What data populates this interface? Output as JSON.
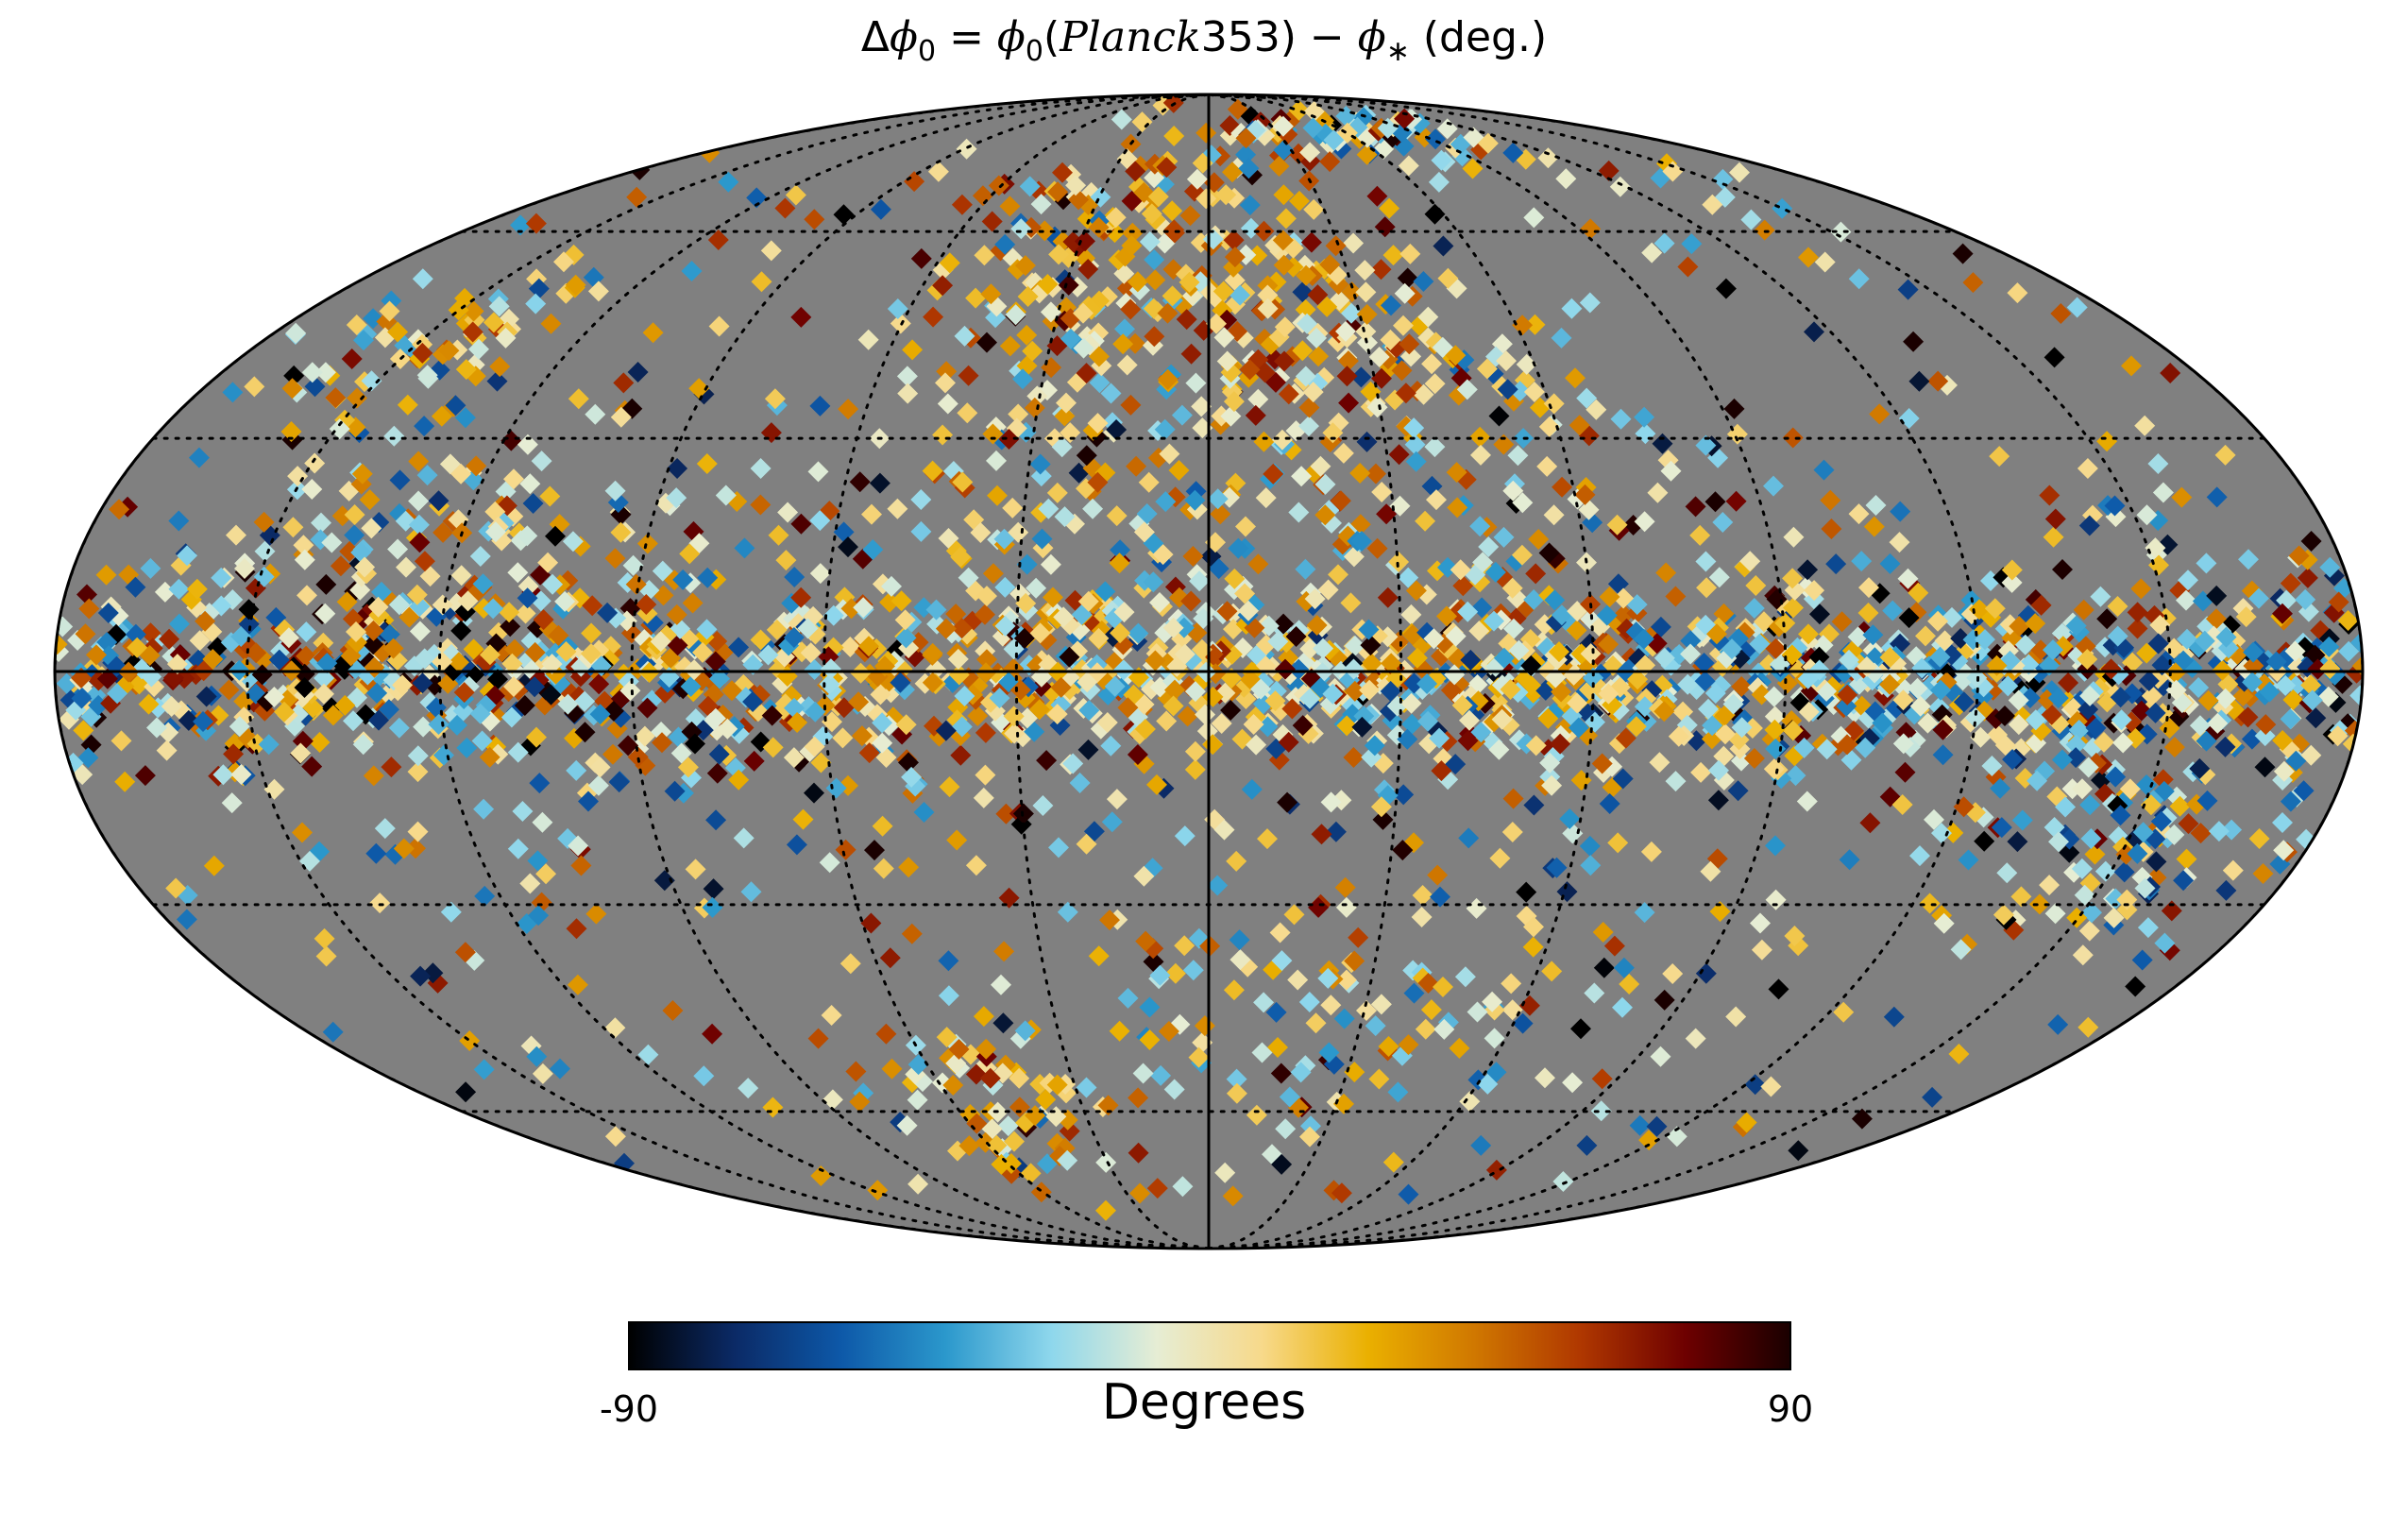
{
  "chart_data": {
    "type": "heatmap",
    "projection": "mollweide",
    "title": {
      "lhs": "Δ",
      "phi": "ϕ",
      "sub0": "0",
      "open": "(",
      "planck": "Planck",
      "band": "353",
      "close": ")",
      "minus": " − ",
      "phistar": "ϕ",
      "star": "∗",
      "units": " (deg.)"
    },
    "colorbar": {
      "label": "Degrees",
      "min_label": "-90",
      "max_label": "90",
      "vmin": -90,
      "vmax": 90,
      "colors": [
        "#000000",
        "#0b2a66",
        "#0d58a8",
        "#2b98cc",
        "#8ed7ec",
        "#e6edd4",
        "#f7d98a",
        "#eab000",
        "#d07800",
        "#b03800",
        "#6e0000",
        "#1a0000"
      ]
    },
    "graticule": {
      "meridian_step_deg": 30,
      "parallel_step_deg": 30,
      "style": "dotted"
    },
    "background_color": "#808080",
    "data_description": "Sparse HEALPix-like pixels concentrated near the Galactic plane with high-latitude clouds; values range from -90 to 90 degrees."
  }
}
